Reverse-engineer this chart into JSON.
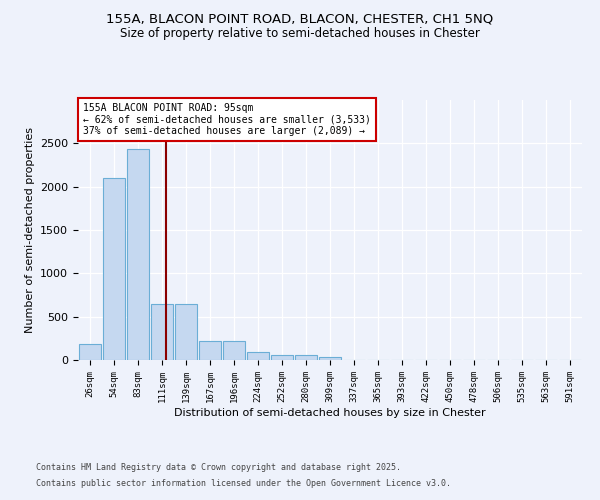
{
  "title1": "155A, BLACON POINT ROAD, BLACON, CHESTER, CH1 5NQ",
  "title2": "Size of property relative to semi-detached houses in Chester",
  "xlabel": "Distribution of semi-detached houses by size in Chester",
  "ylabel": "Number of semi-detached properties",
  "bins": [
    "26sqm",
    "54sqm",
    "83sqm",
    "111sqm",
    "139sqm",
    "167sqm",
    "196sqm",
    "224sqm",
    "252sqm",
    "280sqm",
    "309sqm",
    "337sqm",
    "365sqm",
    "393sqm",
    "422sqm",
    "450sqm",
    "478sqm",
    "506sqm",
    "535sqm",
    "563sqm",
    "591sqm"
  ],
  "values": [
    190,
    2100,
    2430,
    650,
    650,
    215,
    215,
    95,
    60,
    55,
    30,
    0,
    0,
    0,
    0,
    0,
    0,
    0,
    0,
    0,
    0
  ],
  "bar_color": "#c5d8f0",
  "bar_edge_color": "#6baed6",
  "red_line_color": "#8b0000",
  "annotation_text": "155A BLACON POINT ROAD: 95sqm\n← 62% of semi-detached houses are smaller (3,533)\n37% of semi-detached houses are larger (2,089) →",
  "annotation_box_color": "#ffffff",
  "annotation_box_edge": "#cc0000",
  "footer1": "Contains HM Land Registry data © Crown copyright and database right 2025.",
  "footer2": "Contains public sector information licensed under the Open Government Licence v3.0.",
  "ylim": [
    0,
    3000
  ],
  "background_color": "#eef2fb",
  "grid_color": "#ffffff",
  "red_line_x": 3.15
}
